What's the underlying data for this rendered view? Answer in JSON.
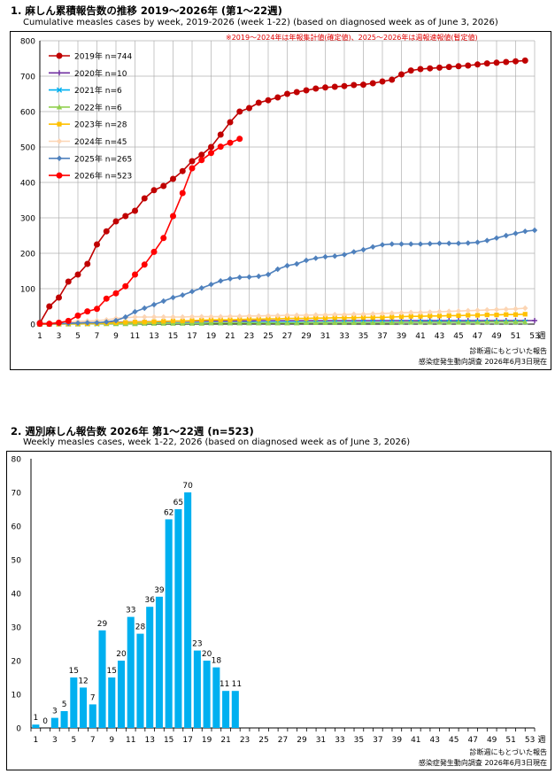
{
  "chart1": {
    "title": "1. 麻しん累積報告数の推移  2019～2026年 (第1～22週)",
    "subtitle": "Cumulative measles cases by week, 2019-2026 (week 1-22)  (based on diagnosed week as of June 3, 2026)",
    "note": "※2019～2024年は年報集計値(確定値)、2025～2026年は週報速報値(暫定値)",
    "x_unit": "週",
    "source_line1": "診断週にもとづいた報告",
    "source_line2": "感染症発生動向調査 2026年6月3日現在"
  },
  "chart2": {
    "title": "2. 週別麻しん報告数  2026年 第1～22週 (n=523)",
    "subtitle": "Weekly measles cases, week 1-22, 2026 (based on diagnosed week as of June 3, 2026)",
    "x_unit": "週",
    "source_line1": "診断週にもとづいた報告",
    "source_line2": "感染症発生動向調査 2026年6月3日現在"
  },
  "chart_data": [
    {
      "type": "line",
      "ylim": [
        0,
        800
      ],
      "yticks": [
        0,
        100,
        200,
        300,
        400,
        500,
        600,
        700,
        800
      ],
      "xlim": [
        1,
        53
      ],
      "xticks": [
        1,
        3,
        5,
        7,
        9,
        11,
        13,
        15,
        17,
        19,
        21,
        23,
        25,
        27,
        29,
        31,
        33,
        35,
        37,
        39,
        41,
        43,
        45,
        47,
        49,
        51,
        53
      ],
      "grid": true,
      "legend_position": "top-left",
      "series": [
        {
          "name": "2019年 n=744",
          "color": "#c00000",
          "marker": "circle",
          "values": [
            3,
            50,
            75,
            120,
            140,
            170,
            225,
            262,
            290,
            305,
            320,
            355,
            378,
            390,
            410,
            432,
            460,
            478,
            500,
            535,
            570,
            600,
            610,
            625,
            632,
            640,
            650,
            655,
            660,
            665,
            668,
            670,
            672,
            675,
            676,
            680,
            685,
            690,
            705,
            716,
            720,
            722,
            724,
            726,
            728,
            730,
            733,
            736,
            738,
            740,
            742,
            744
          ]
        },
        {
          "name": "2020年 n=10",
          "color": "#7030a0",
          "marker": "plus",
          "values": [
            1,
            2,
            2,
            3,
            3,
            4,
            4,
            5,
            5,
            6,
            6,
            7,
            7,
            7,
            8,
            8,
            8,
            9,
            9,
            9,
            9,
            9,
            9,
            10,
            10,
            10,
            10,
            10,
            10,
            10,
            10,
            10,
            10,
            10,
            10,
            10,
            10,
            10,
            10,
            10,
            10,
            10,
            10,
            10,
            10,
            10,
            10,
            10,
            10,
            10,
            10,
            10,
            10
          ]
        },
        {
          "name": "2021年 n=6",
          "color": "#00b0f0",
          "marker": "x",
          "values": [
            0,
            0,
            1,
            1,
            1,
            1,
            1,
            2,
            2,
            2,
            2,
            2,
            3,
            3,
            3,
            3,
            3,
            4,
            4,
            4,
            4,
            4,
            5,
            5,
            5,
            5,
            5,
            5,
            5,
            5,
            5,
            5,
            5,
            5,
            5,
            5,
            5,
            5,
            5,
            5,
            6,
            6,
            6,
            6,
            6,
            6,
            6,
            6,
            6,
            6,
            6,
            6
          ]
        },
        {
          "name": "2022年 n=6",
          "color": "#92d050",
          "marker": "triangle",
          "values": [
            0,
            0,
            0,
            0,
            0,
            1,
            1,
            1,
            1,
            1,
            1,
            2,
            2,
            2,
            2,
            2,
            2,
            2,
            3,
            3,
            3,
            3,
            3,
            3,
            3,
            3,
            3,
            3,
            4,
            4,
            4,
            4,
            4,
            4,
            4,
            4,
            4,
            4,
            5,
            5,
            5,
            5,
            5,
            5,
            5,
            5,
            5,
            6,
            6,
            6,
            6,
            6
          ]
        },
        {
          "name": "2023年 n=28",
          "color": "#ffc000",
          "marker": "square",
          "values": [
            0,
            0,
            0,
            1,
            1,
            1,
            2,
            3,
            4,
            5,
            6,
            6,
            7,
            8,
            9,
            9,
            10,
            11,
            12,
            12,
            12,
            13,
            14,
            14,
            15,
            15,
            16,
            16,
            16,
            17,
            17,
            18,
            18,
            18,
            19,
            19,
            19,
            20,
            21,
            22,
            22,
            23,
            23,
            24,
            24,
            25,
            25,
            26,
            26,
            27,
            27,
            28
          ]
        },
        {
          "name": "2024年 n=45",
          "color": "#fcd5b4",
          "marker": "diamond",
          "values": [
            2,
            4,
            5,
            6,
            8,
            9,
            10,
            12,
            16,
            18,
            20,
            20,
            20,
            20,
            20,
            20,
            21,
            21,
            21,
            21,
            22,
            22,
            23,
            23,
            24,
            24,
            25,
            25,
            25,
            26,
            26,
            27,
            27,
            28,
            28,
            29,
            30,
            31,
            32,
            33,
            33,
            34,
            35,
            36,
            37,
            38,
            39,
            40,
            41,
            42,
            43,
            45
          ]
        },
        {
          "name": "2025年 n=265",
          "color": "#4f81bd",
          "marker": "diamond",
          "values": [
            1,
            1,
            1,
            2,
            3,
            4,
            4,
            6,
            10,
            20,
            35,
            45,
            55,
            65,
            75,
            82,
            92,
            102,
            112,
            122,
            128,
            132,
            133,
            135,
            140,
            155,
            165,
            170,
            180,
            186,
            190,
            192,
            196,
            204,
            210,
            218,
            224,
            226,
            226,
            226,
            226,
            227,
            228,
            228,
            228,
            229,
            231,
            236,
            243,
            250,
            256,
            262,
            265
          ]
        },
        {
          "name": "2026年 n=523",
          "color": "#ff0000",
          "marker": "circle",
          "values": [
            1,
            1,
            4,
            9,
            24,
            36,
            43,
            72,
            87,
            107,
            140,
            168,
            204,
            243,
            305,
            370,
            440,
            463,
            483,
            501,
            512,
            523
          ]
        }
      ]
    },
    {
      "type": "bar",
      "ylim": [
        0,
        80
      ],
      "yticks": [
        0,
        10,
        20,
        30,
        40,
        50,
        60,
        70,
        80
      ],
      "xticks": [
        1,
        3,
        5,
        7,
        9,
        11,
        13,
        15,
        17,
        19,
        21,
        23,
        25,
        27,
        29,
        31,
        33,
        35,
        37,
        39,
        41,
        43,
        45,
        47,
        49,
        51,
        53
      ],
      "color": "#00b0f0",
      "weeks": [
        1,
        2,
        3,
        4,
        5,
        6,
        7,
        8,
        9,
        10,
        11,
        12,
        13,
        14,
        15,
        16,
        17,
        18,
        19,
        20,
        21,
        22
      ],
      "values": [
        1,
        0,
        3,
        5,
        15,
        12,
        7,
        29,
        15,
        20,
        33,
        28,
        36,
        39,
        62,
        65,
        70,
        23,
        20,
        18,
        11,
        11
      ],
      "labels": [
        "1",
        "0",
        "3",
        "5",
        "15",
        "12",
        "7",
        "29",
        "15",
        "20",
        "33",
        "28",
        "36",
        "39",
        "62",
        "65",
        "70",
        "23",
        "20",
        "18",
        "11",
        "11"
      ]
    }
  ]
}
